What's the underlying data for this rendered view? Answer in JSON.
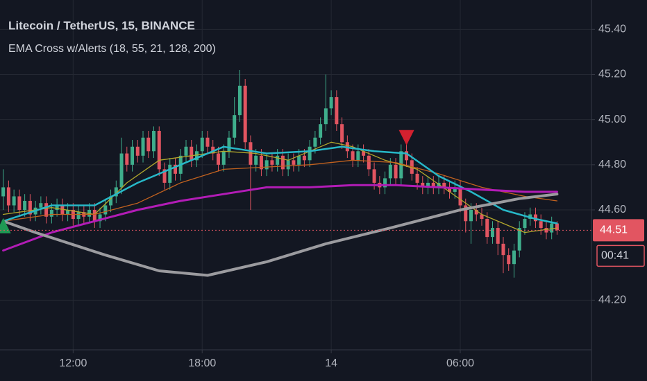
{
  "chart_data": {
    "type": "candlestick",
    "title": "Litecoin / TetherUS, 15, BINANCE",
    "subtitle": "EMA Cross w/Alerts (18, 55, 21, 128, 200)",
    "xlim": [
      8.6,
      36.1
    ],
    "ylim": [
      43.98,
      45.53
    ],
    "xticks": [
      {
        "value": 12,
        "label": "12:00"
      },
      {
        "value": 18,
        "label": "18:00"
      },
      {
        "value": 24,
        "label": "14"
      },
      {
        "value": 30,
        "label": "06:00"
      }
    ],
    "yticks": [
      {
        "value": 45.4,
        "label": "45.40"
      },
      {
        "value": 45.2,
        "label": "45.20"
      },
      {
        "value": 45,
        "label": "45.00"
      },
      {
        "value": 44.8,
        "label": "44.80"
      },
      {
        "value": 44.6,
        "label": "44.60"
      },
      {
        "value": 44.2,
        "label": "44.20"
      }
    ],
    "grid": true,
    "up_color": "#3fae8c",
    "down_color": "#e25561",
    "x": [
      8.75,
      9,
      9.25,
      9.5,
      9.75,
      10,
      10.25,
      10.5,
      10.75,
      11,
      11.25,
      11.5,
      11.75,
      12,
      12.25,
      12.5,
      12.75,
      13,
      13.25,
      13.5,
      13.75,
      14,
      14.25,
      14.5,
      14.75,
      15,
      15.25,
      15.5,
      15.75,
      16,
      16.25,
      16.5,
      16.75,
      17,
      17.25,
      17.5,
      17.75,
      18,
      18.25,
      18.5,
      18.75,
      19,
      19.25,
      19.5,
      19.75,
      20,
      20.25,
      20.5,
      20.75,
      21,
      21.25,
      21.5,
      21.75,
      22,
      22.25,
      22.5,
      22.75,
      23,
      23.25,
      23.5,
      23.75,
      24,
      24.25,
      24.5,
      24.75,
      25,
      25.25,
      25.5,
      25.75,
      26,
      26.25,
      26.5,
      26.75,
      27,
      27.25,
      27.5,
      27.75,
      28,
      28.25,
      28.5,
      28.75,
      29,
      29.25,
      29.5,
      29.75,
      30,
      30.25,
      30.5,
      30.75,
      31,
      31.25,
      31.5,
      31.75,
      32,
      32.25,
      32.5,
      32.75,
      33,
      33.25,
      33.5,
      33.75,
      34,
      34.25,
      34.5
    ],
    "open": [
      44.66,
      44.7,
      44.62,
      44.66,
      44.6,
      44.64,
      44.58,
      44.61,
      44.63,
      44.57,
      44.6,
      44.62,
      44.58,
      44.6,
      44.56,
      44.59,
      44.57,
      44.6,
      44.55,
      44.58,
      44.62,
      44.66,
      44.7,
      44.85,
      44.8,
      44.88,
      44.84,
      44.92,
      44.86,
      44.95,
      44.78,
      44.72,
      44.8,
      44.76,
      44.84,
      44.88,
      44.82,
      44.86,
      44.92,
      44.88,
      44.85,
      44.8,
      44.86,
      44.92,
      45.02,
      45.15,
      44.9,
      44.8,
      44.84,
      44.78,
      44.82,
      44.8,
      44.84,
      44.78,
      44.82,
      44.8,
      44.84,
      44.82,
      44.88,
      44.92,
      44.98,
      45.05,
      45.1,
      44.98,
      44.9,
      44.86,
      44.82,
      44.86,
      44.84,
      44.78,
      44.72,
      44.7,
      44.74,
      44.8,
      44.74,
      44.86,
      44.82,
      44.76,
      44.72,
      44.7,
      44.72,
      44.7,
      44.72,
      44.7,
      44.68,
      44.7,
      44.62,
      44.55,
      44.6,
      44.58,
      44.56,
      44.48,
      44.52,
      44.45,
      44.4,
      44.36,
      44.42,
      44.52,
      44.56,
      44.58,
      44.55,
      44.52,
      44.5,
      44.54
    ],
    "high": [
      44.78,
      44.73,
      44.69,
      44.69,
      44.67,
      44.67,
      44.64,
      44.66,
      44.66,
      44.63,
      44.65,
      44.65,
      44.63,
      44.63,
      44.62,
      44.62,
      44.63,
      44.63,
      44.61,
      44.65,
      44.69,
      44.73,
      44.92,
      44.88,
      44.91,
      44.91,
      44.95,
      44.95,
      44.97,
      44.97,
      44.81,
      44.83,
      44.83,
      44.87,
      44.91,
      44.91,
      44.89,
      44.95,
      44.95,
      44.91,
      44.88,
      44.89,
      44.95,
      45.1,
      45.22,
      45.18,
      44.93,
      44.87,
      44.87,
      44.85,
      44.85,
      44.87,
      44.87,
      44.85,
      44.85,
      44.87,
      44.87,
      44.91,
      44.95,
      45.01,
      45.2,
      45.13,
      45.13,
      45.01,
      44.93,
      44.89,
      44.89,
      44.89,
      44.87,
      44.81,
      44.75,
      44.77,
      44.83,
      44.83,
      44.89,
      44.89,
      44.85,
      44.79,
      44.75,
      44.75,
      44.75,
      44.75,
      44.75,
      44.73,
      44.73,
      44.73,
      44.65,
      44.63,
      44.63,
      44.61,
      44.59,
      44.55,
      44.55,
      44.48,
      44.43,
      44.45,
      44.55,
      44.59,
      44.61,
      44.61,
      44.58,
      44.55,
      44.57,
      44.55
    ],
    "low": [
      44.6,
      44.59,
      44.59,
      44.57,
      44.57,
      44.55,
      44.55,
      44.58,
      44.54,
      44.54,
      44.57,
      44.55,
      44.55,
      44.53,
      44.53,
      44.54,
      44.54,
      44.52,
      44.52,
      44.55,
      44.59,
      44.63,
      44.67,
      44.77,
      44.77,
      44.81,
      44.81,
      44.83,
      44.83,
      44.75,
      44.69,
      44.69,
      44.73,
      44.73,
      44.81,
      44.79,
      44.79,
      44.83,
      44.85,
      44.82,
      44.77,
      44.77,
      44.83,
      44.89,
      44.99,
      44.87,
      44.6,
      44.77,
      44.75,
      44.75,
      44.77,
      44.77,
      44.75,
      44.75,
      44.77,
      44.77,
      44.79,
      44.79,
      44.85,
      44.89,
      44.95,
      45.02,
      44.95,
      44.87,
      44.83,
      44.79,
      44.79,
      44.81,
      44.75,
      44.69,
      44.67,
      44.67,
      44.71,
      44.71,
      44.71,
      44.79,
      44.73,
      44.69,
      44.67,
      44.67,
      44.67,
      44.67,
      44.67,
      44.65,
      44.65,
      44.59,
      44.5,
      44.45,
      44.55,
      44.53,
      44.45,
      44.45,
      44.4,
      44.32,
      44.33,
      44.3,
      44.39,
      44.49,
      44.53,
      44.52,
      44.49,
      44.47,
      44.47,
      44.49
    ],
    "close": [
      44.7,
      44.62,
      44.66,
      44.6,
      44.64,
      44.58,
      44.61,
      44.63,
      44.57,
      44.6,
      44.62,
      44.58,
      44.6,
      44.56,
      44.59,
      44.57,
      44.6,
      44.55,
      44.58,
      44.62,
      44.66,
      44.7,
      44.85,
      44.8,
      44.88,
      44.84,
      44.92,
      44.86,
      44.95,
      44.78,
      44.72,
      44.8,
      44.76,
      44.84,
      44.88,
      44.82,
      44.86,
      44.92,
      44.88,
      44.85,
      44.8,
      44.86,
      44.92,
      45.02,
      45.15,
      44.9,
      44.8,
      44.84,
      44.78,
      44.82,
      44.8,
      44.84,
      44.78,
      44.82,
      44.8,
      44.84,
      44.82,
      44.88,
      44.92,
      44.98,
      45.05,
      45.1,
      44.98,
      44.9,
      44.86,
      44.82,
      44.86,
      44.84,
      44.78,
      44.72,
      44.7,
      44.74,
      44.8,
      44.74,
      44.86,
      44.82,
      44.76,
      44.72,
      44.7,
      44.72,
      44.7,
      44.72,
      44.7,
      44.68,
      44.7,
      44.62,
      44.55,
      44.6,
      44.58,
      44.56,
      44.48,
      44.52,
      44.45,
      44.4,
      44.36,
      44.42,
      44.52,
      44.56,
      44.58,
      44.55,
      44.52,
      44.5,
      44.54,
      44.51
    ],
    "last_price_label": "44.51",
    "countdown": "00:41",
    "emas": [
      {
        "color": "#b3a82c",
        "width": 1.3,
        "x": [
          8.75,
          11,
          13,
          14.5,
          16,
          17.5,
          19,
          20.5,
          22,
          24,
          25,
          26.5,
          28,
          29.5,
          31,
          33,
          34.5
        ],
        "values": [
          44.58,
          44.61,
          44.58,
          44.72,
          44.82,
          44.84,
          44.86,
          44.85,
          44.82,
          44.9,
          44.88,
          44.82,
          44.78,
          44.68,
          44.58,
          44.5,
          44.52
        ]
      },
      {
        "color": "#c2621f",
        "width": 1.3,
        "x": [
          8.75,
          11,
          13,
          15,
          17,
          19,
          21,
          23,
          25,
          27,
          29,
          31,
          33,
          34.5
        ],
        "values": [
          44.55,
          44.58,
          44.58,
          44.63,
          44.72,
          44.78,
          44.79,
          44.8,
          44.82,
          44.81,
          44.76,
          44.7,
          44.66,
          44.64
        ]
      },
      {
        "color": "#27b8c8",
        "width": 2.5,
        "x": [
          8.75,
          11,
          13,
          15,
          17,
          19,
          21,
          23,
          24.5,
          26,
          27.5,
          29,
          30.5,
          32,
          33.5,
          34.5
        ],
        "values": [
          44.55,
          44.62,
          44.62,
          44.72,
          44.8,
          44.88,
          44.85,
          44.86,
          44.88,
          44.86,
          44.85,
          44.75,
          44.68,
          44.6,
          44.56,
          44.54
        ]
      },
      {
        "color": "#b21cb6",
        "width": 3,
        "x": [
          8.75,
          11,
          13,
          15,
          17,
          19,
          21,
          23,
          25,
          27,
          29,
          31,
          33,
          34.5
        ],
        "values": [
          44.42,
          44.5,
          44.55,
          44.6,
          44.64,
          44.67,
          44.7,
          44.7,
          44.71,
          44.71,
          44.7,
          44.69,
          44.68,
          44.68
        ]
      },
      {
        "color": "#9b9b9f",
        "width": 4,
        "x": [
          8.75,
          10.25,
          13.5,
          16,
          18.25,
          21,
          23.75,
          26.75,
          30,
          32.75,
          34.5
        ],
        "values": [
          44.55,
          44.5,
          44.4,
          44.33,
          44.31,
          44.37,
          44.45,
          44.52,
          44.6,
          44.65,
          44.67
        ]
      }
    ],
    "markers": [
      {
        "type": "sell",
        "color": "#d3212f",
        "x": 27.5,
        "y": 44.92
      },
      {
        "type": "buy",
        "color": "#1f9a54",
        "x": 8.75,
        "y": 44.53
      }
    ]
  }
}
